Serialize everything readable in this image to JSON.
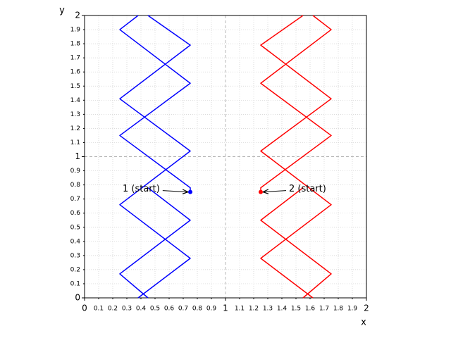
{
  "chart_data": {
    "type": "line",
    "xlabel": "x",
    "ylabel": "y",
    "xlim": [
      0,
      2
    ],
    "ylim": [
      0,
      2
    ],
    "xticks": [
      0,
      0.1,
      0.2,
      0.3,
      0.4,
      0.5,
      0.6,
      0.7,
      0.8,
      0.9,
      1,
      1.1,
      1.2,
      1.3,
      1.4,
      1.5,
      1.6,
      1.7,
      1.8,
      1.9,
      2
    ],
    "yticks": [
      0,
      0.1,
      0.2,
      0.3,
      0.4,
      0.5,
      0.6,
      0.7,
      0.8,
      0.9,
      1,
      1.1,
      1.2,
      1.3,
      1.4,
      1.5,
      1.6,
      1.7,
      1.8,
      1.9,
      2
    ],
    "grid": true,
    "series": [
      {
        "color": "#0000ff",
        "x": [
          0.75,
          0.75,
          0.25,
          0.75,
          0.25,
          0.38,
          null,
          0.38,
          0.75,
          0.25,
          0.75,
          0.25,
          0.75,
          0.45,
          null,
          0.45,
          0.25,
          0.75,
          0.45
        ],
        "y": [
          0.75,
          0.78,
          1.15,
          1.52,
          1.9,
          2.0,
          null,
          0.0,
          0.28,
          0.66,
          1.04,
          1.41,
          1.79,
          2.0,
          null,
          0.0,
          0.17,
          0.55,
          0.78
        ]
      },
      {
        "color": "#ff0000",
        "x": [
          1.25,
          1.25,
          1.75,
          1.25,
          1.75,
          1.62,
          null,
          1.62,
          1.25,
          1.75,
          1.25,
          1.75,
          1.25,
          1.55,
          null,
          1.55,
          1.75,
          1.25,
          1.55
        ],
        "y": [
          0.75,
          0.78,
          1.15,
          1.52,
          1.9,
          2.0,
          null,
          0.0,
          0.28,
          0.66,
          1.04,
          1.41,
          1.79,
          2.0,
          null,
          0.0,
          0.17,
          0.55,
          0.78
        ]
      }
    ],
    "annotations": [
      {
        "text": "1 (start)",
        "xy": [
          0.75,
          0.75
        ],
        "xytext": [
          0.27,
          0.77
        ],
        "color": "#0000ff"
      },
      {
        "text": "2 (start)",
        "xy": [
          1.25,
          0.75
        ],
        "xytext": [
          1.45,
          0.77
        ],
        "color": "#ff0000"
      }
    ]
  }
}
